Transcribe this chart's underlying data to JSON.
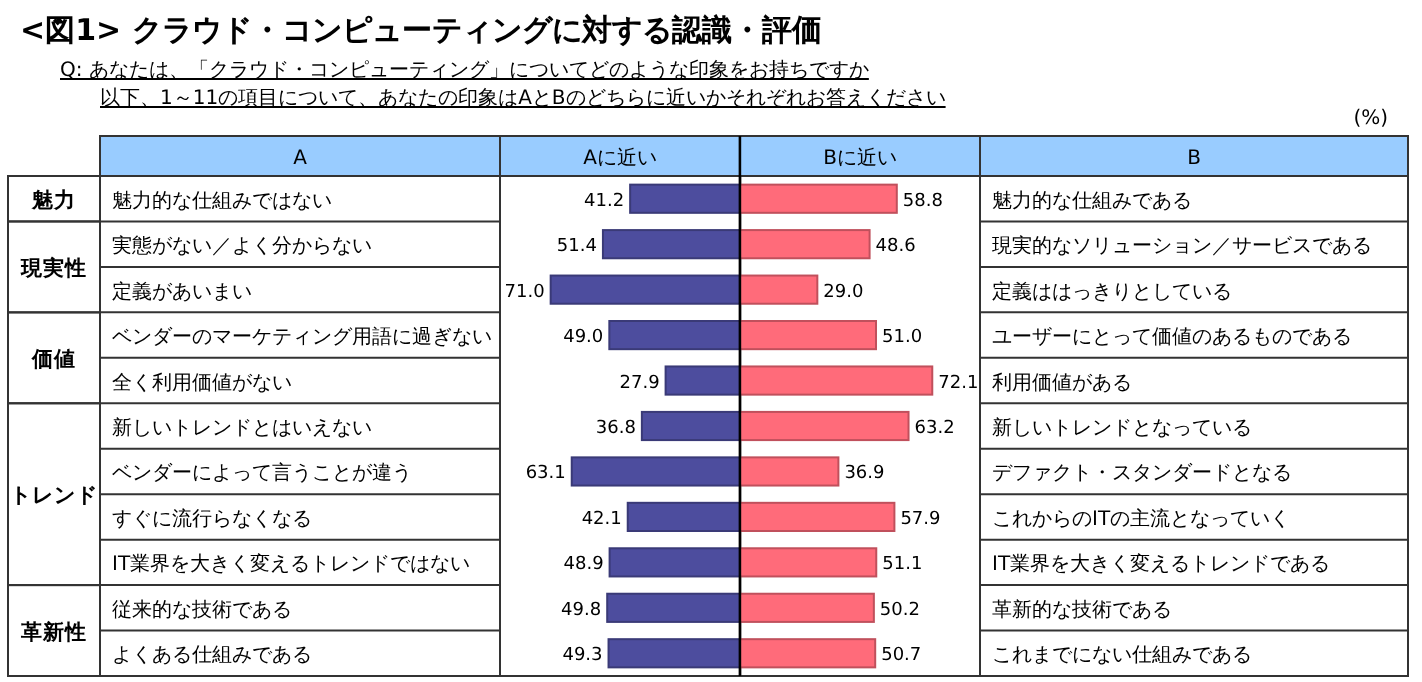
{
  "chart_data": [
    {
      "type": "bar",
      "orientation": "horizontal",
      "title": "<図1> クラウド・コンピューティングに対する認識・評価",
      "subtitle": "Q: あなたは、「クラウド・コンピューティング」についてどのような印象をお持ちですか",
      "ylabel": "A",
      "xlabel": "Aに近い",
      "categories": [
        "魅力的な仕組みではない",
        "実態がない／よく分からない",
        "定義があいまい",
        "ベンダーのマーケティング用語に過ぎない",
        "全く利用価値がない",
        "新しいトレンドとはいえない",
        "ベンダーによって言うことが違う",
        "すぐに流行らなくなる",
        "IT業界を大きく変えるトレンドではない",
        "従来的な技術である",
        "よくある仕組みである"
      ],
      "values": [
        41.2,
        51.4,
        71.0,
        49.0,
        27.9,
        36.8,
        63.1,
        42.1,
        48.9,
        49.8,
        49.3
      ],
      "color": "#4d4d9e",
      "xlim": [
        90,
        0
      ],
      "tick_labels": "y",
      "value_labels": [
        "41.2",
        "51.4",
        "71.0",
        "49.0",
        "27.9",
        "36.8",
        "63.1",
        "42.1",
        "48.9",
        "49.8",
        "49.3"
      ],
      "annotations": [
        "魅力",
        "現実性",
        "価値",
        "トレンド",
        "革新性"
      ]
    },
    {
      "type": "bar",
      "orientation": "horizontal",
      "subtitle": "以下、1～11の項目について、あなたの印象はAとBのどちらに近いかそれぞれお答えください",
      "ylabel": "B",
      "xlabel": "Bに近い",
      "categories": [
        "魅力的な仕組みである",
        "現実的なソリューション／サービスである",
        "定義ははっきりとしている",
        "ユーザーにとって価値のあるものである",
        "利用価値がある",
        "新しいトレンドとなっている",
        "デファクト・スタンダードとなる",
        "これからのITの主流となっていく",
        "IT業界を大きく変えるトレンドである",
        "革新的な技術である",
        "これまでにない仕組みである"
      ],
      "values": [
        58.8,
        48.6,
        29.0,
        51.0,
        72.1,
        63.2,
        36.9,
        57.9,
        51.1,
        50.2,
        50.7
      ],
      "color": "#ff6b7a",
      "xlim": [
        0,
        90
      ],
      "tick_labels": "y",
      "value_labels": [
        "58.8",
        "48.6",
        "29.0",
        "51.0",
        "72.1",
        "63.2",
        "36.9",
        "57.9",
        "51.1",
        "50.2",
        "50.7"
      ],
      "annotations": [
        "(%)"
      ]
    }
  ]
}
